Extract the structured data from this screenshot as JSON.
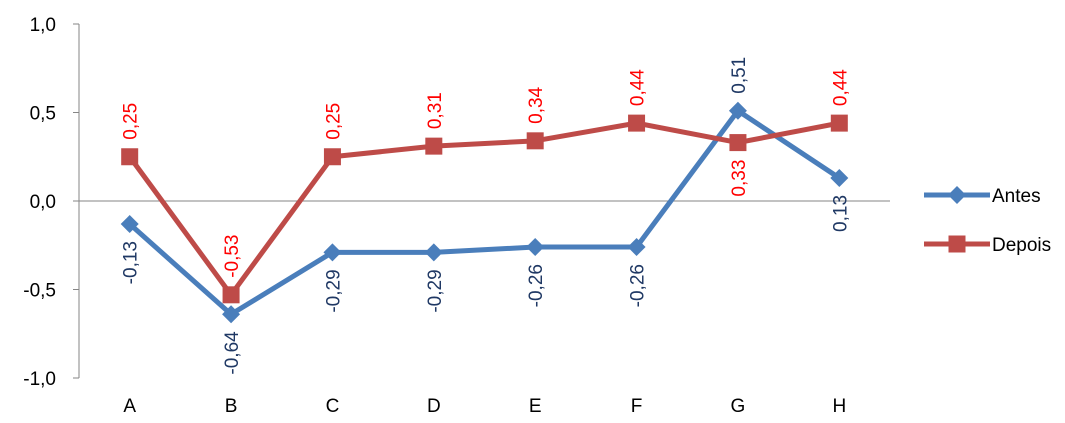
{
  "chart_data": {
    "type": "line",
    "categories": [
      "A",
      "B",
      "C",
      "D",
      "E",
      "F",
      "G",
      "H"
    ],
    "ylim": [
      -1.0,
      1.0
    ],
    "yticks": [
      -1.0,
      -0.5,
      0.0,
      0.5,
      1.0
    ],
    "ytick_labels": [
      "-1,0",
      "-0,5",
      "0,0",
      "0,5",
      "1,0"
    ],
    "grid": false,
    "legend_position": "right",
    "series": [
      {
        "name": "Antes",
        "color": "#4a7ebb",
        "label_color": "#1f3864",
        "marker": "diamond",
        "values": [
          -0.13,
          -0.64,
          -0.29,
          -0.29,
          -0.26,
          -0.26,
          0.51,
          0.13
        ],
        "labels": [
          "-0,13",
          "-0,64",
          "-0,29",
          "-0,29",
          "-0,26",
          "-0,26",
          "0,51",
          "0,13"
        ]
      },
      {
        "name": "Depois",
        "color": "#be4b48",
        "label_color": "#ff0000",
        "marker": "square",
        "values": [
          0.25,
          -0.53,
          0.25,
          0.31,
          0.34,
          0.44,
          0.33,
          0.44
        ],
        "labels": [
          "0,25",
          "-0,53",
          "0,25",
          "0,31",
          "0,34",
          "0,44",
          "0,33",
          "0,44"
        ]
      }
    ]
  }
}
